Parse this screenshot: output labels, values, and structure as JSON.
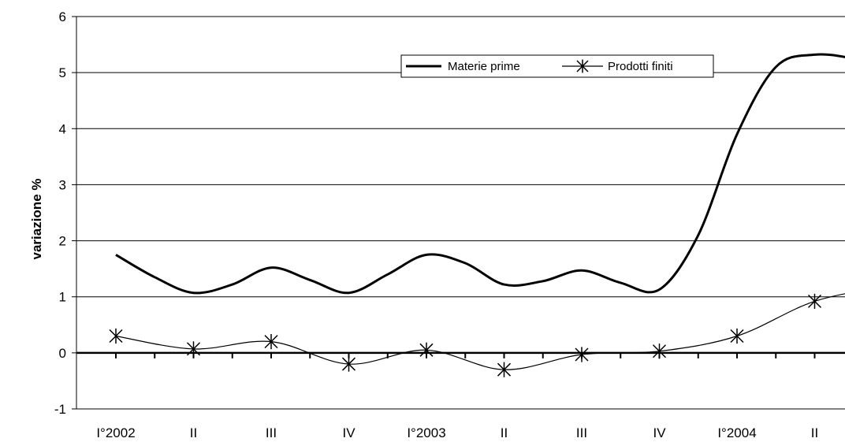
{
  "chart_data": {
    "type": "line",
    "title": "",
    "xlabel": "",
    "ylabel": "variazione %",
    "categories": [
      "I°2002",
      "II",
      "III",
      "IV",
      "I°2003",
      "II",
      "III",
      "IV",
      "I°2004",
      "II"
    ],
    "series": [
      {
        "name": "Materie prime",
        "color": "#000000",
        "marker": "none",
        "x": [
          0,
          0.5,
          1,
          1.5,
          2,
          2.5,
          3,
          3.5,
          4,
          4.5,
          5,
          5.5,
          6,
          6.5,
          7,
          7.5,
          8,
          8.5,
          9,
          9.5,
          10
        ],
        "values": [
          1.75,
          1.35,
          1.07,
          1.22,
          1.52,
          1.3,
          1.07,
          1.4,
          1.75,
          1.6,
          1.22,
          1.28,
          1.47,
          1.25,
          1.13,
          2.1,
          3.9,
          5.1,
          5.32,
          5.25,
          5.07
        ]
      },
      {
        "name": "Prodotti finiti",
        "color": "#000000",
        "marker": "asterisk",
        "x": [
          0,
          1,
          2,
          3,
          4,
          5,
          6,
          7,
          8,
          9,
          10
        ],
        "values": [
          0.3,
          0.07,
          0.2,
          -0.2,
          0.05,
          -0.3,
          -0.03,
          0.03,
          0.3,
          0.92,
          1.2
        ]
      }
    ],
    "yticks": [
      "6",
      "5",
      "4",
      "3",
      "2",
      "1",
      "0",
      "-1"
    ],
    "ylim": [
      -1,
      6
    ],
    "grid": true,
    "legend_position": "top-right"
  }
}
